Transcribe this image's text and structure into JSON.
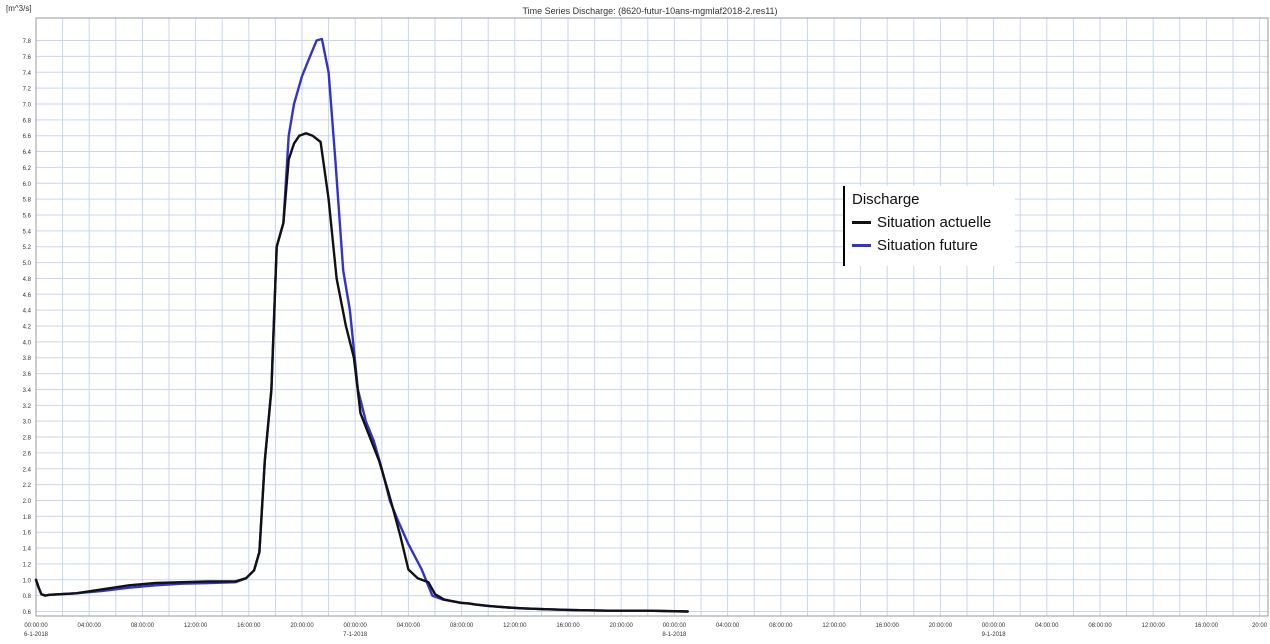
{
  "chart_data": {
    "type": "line",
    "title": "Time Series Discharge: (8620-futur-10ans-mgmlaf2018-2.res11)",
    "ylabel": "[m^3/s]",
    "xlabel": "",
    "ylim": [
      0.6,
      8.0
    ],
    "yticks": [
      "0.6",
      "0.8",
      "1.0",
      "1.2",
      "1.4",
      "1.6",
      "1.8",
      "2.0",
      "2.2",
      "2.4",
      "2.6",
      "2.8",
      "3.0",
      "3.2",
      "3.4",
      "3.6",
      "3.8",
      "4.0",
      "4.2",
      "4.4",
      "4.6",
      "4.8",
      "5.0",
      "5.2",
      "5.4",
      "5.6",
      "5.8",
      "6.0",
      "6.2",
      "6.4",
      "6.6",
      "6.8",
      "7.0",
      "7.2",
      "7.4",
      "7.6",
      "7.8"
    ],
    "xlim_hours": [
      0,
      46
    ],
    "xticks": [
      {
        "time": "00:00:00",
        "date": "6-1-2018"
      },
      {
        "time": "04:00:00",
        "date": ""
      },
      {
        "time": "08:00:00",
        "date": ""
      },
      {
        "time": "12:00:00",
        "date": ""
      },
      {
        "time": "16:00:00",
        "date": ""
      },
      {
        "time": "20:00:00",
        "date": ""
      },
      {
        "time": "00:00:00",
        "date": "7-1-2018"
      },
      {
        "time": "04:00:00",
        "date": ""
      },
      {
        "time": "08:00:00",
        "date": ""
      },
      {
        "time": "12:00:00",
        "date": ""
      },
      {
        "time": "16:00:00",
        "date": ""
      },
      {
        "time": "20:00:00",
        "date": ""
      },
      {
        "time": "00:00:00",
        "date": "8-1-2018"
      },
      {
        "time": "04:00:00",
        "date": ""
      },
      {
        "time": "08:00:00",
        "date": ""
      },
      {
        "time": "12:00:00",
        "date": ""
      },
      {
        "time": "16:00:00",
        "date": ""
      },
      {
        "time": "20:00:00",
        "date": ""
      },
      {
        "time": "00:00:00",
        "date": "9-1-2018"
      },
      {
        "time": "04:00:00",
        "date": ""
      },
      {
        "time": "08:00:00",
        "date": ""
      },
      {
        "time": "12:00:00",
        "date": ""
      },
      {
        "time": "16:00:00",
        "date": ""
      },
      {
        "time": "20:00",
        "date": ""
      }
    ],
    "grid": true,
    "legend": {
      "title": "Discharge",
      "placement": "right"
    },
    "series": [
      {
        "name": "Situation actuelle",
        "color": "#111111",
        "x": [
          -3.0,
          -2.8,
          -2.6,
          -2.3,
          -2.0,
          -1.0,
          0,
          2,
          4,
          6,
          8,
          10,
          12,
          12.8,
          13.4,
          13.8,
          14.2,
          14.7,
          15.1,
          15.6,
          16.0,
          16.4,
          16.8,
          17.3,
          17.8,
          18.4,
          19.0,
          19.6,
          20.3,
          20.9,
          21.4,
          22.1,
          22.8,
          23.5,
          24.0,
          24.4,
          25.0,
          25.7,
          26.5,
          27.0,
          27.7,
          28.3,
          28.9,
          29.6,
          30.0,
          30.5,
          31.0,
          31.7,
          32.5,
          33.5,
          35,
          37,
          40,
          43,
          46
        ],
        "y": [
          1.0,
          0.9,
          0.82,
          0.8,
          0.81,
          0.82,
          0.83,
          0.88,
          0.93,
          0.96,
          0.97,
          0.98,
          0.98,
          1.02,
          1.12,
          1.35,
          2.5,
          3.4,
          5.2,
          5.5,
          6.3,
          6.5,
          6.6,
          6.63,
          6.6,
          6.52,
          5.8,
          4.8,
          4.2,
          3.8,
          3.1,
          2.8,
          2.5,
          2.1,
          1.8,
          1.55,
          1.13,
          1.02,
          0.97,
          0.82,
          0.75,
          0.73,
          0.71,
          0.7,
          0.69,
          0.68,
          0.67,
          0.66,
          0.65,
          0.64,
          0.63,
          0.62,
          0.61,
          0.61,
          0.6
        ]
      },
      {
        "name": "Situation future",
        "color": "#3333cc",
        "x": [
          -3.0,
          -2.8,
          -2.6,
          -2.3,
          -2.0,
          -1.0,
          0,
          2,
          4,
          6,
          8,
          10,
          12,
          12.8,
          13.4,
          13.8,
          14.2,
          14.7,
          15.1,
          15.6,
          16.0,
          16.4,
          17.0,
          17.6,
          18.1,
          18.5,
          19.0,
          19.5,
          20.1,
          20.6,
          21.2,
          21.8,
          22.4,
          23.0,
          23.6,
          24.2,
          25.0,
          26.0,
          26.8,
          27.6,
          28.3,
          29.0,
          29.6,
          30.0,
          30.5,
          31.0,
          31.7,
          32.5,
          33.5,
          35,
          37,
          40,
          43,
          46
        ],
        "y": [
          1.0,
          0.9,
          0.82,
          0.8,
          0.81,
          0.82,
          0.83,
          0.86,
          0.9,
          0.93,
          0.95,
          0.96,
          0.97,
          1.02,
          1.12,
          1.35,
          2.5,
          3.4,
          5.2,
          5.5,
          6.6,
          7.0,
          7.35,
          7.6,
          7.8,
          7.82,
          7.4,
          6.3,
          4.9,
          4.4,
          3.4,
          3.0,
          2.75,
          2.4,
          2.0,
          1.75,
          1.45,
          1.13,
          0.8,
          0.75,
          0.73,
          0.71,
          0.7,
          0.69,
          0.68,
          0.67,
          0.66,
          0.65,
          0.64,
          0.63,
          0.62,
          0.61,
          0.61,
          0.6
        ]
      }
    ]
  },
  "colors": {
    "grid": "#c7d6ee",
    "axis": "#555555",
    "frame": "#9a9a9a",
    "text": "#333333"
  }
}
